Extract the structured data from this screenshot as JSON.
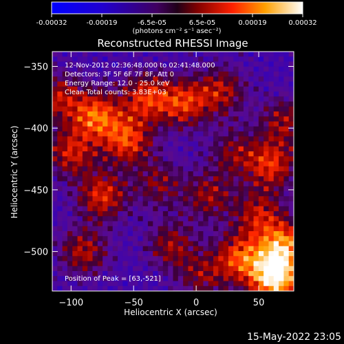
{
  "colorbar": {
    "ticks": [
      "-0.00032",
      "-0.00019",
      "-6.5e-05",
      "6.5e-05",
      "0.00019",
      "0.00032"
    ],
    "units": "(photons cm⁻² s⁻¹ asec⁻²)",
    "min": -0.00032,
    "max": 0.00032
  },
  "chart_data": {
    "type": "heatmap",
    "title": "Reconstructed RHESSI Image",
    "xlabel": "Heliocentric X (arcsec)",
    "ylabel": "Heliocentric Y (arcsec)",
    "xlim": [
      -115,
      78
    ],
    "ylim": [
      -532,
      -338
    ],
    "xticks": [
      -100,
      -50,
      0,
      50
    ],
    "yticks": [
      -500,
      -450,
      -400,
      -350
    ],
    "peak": [
      63,
      -521
    ],
    "info_lines": [
      "12-Nov-2012 02:36:48.000 to 02:41:48.000",
      "Detectors: 3F 5F 6F 7F 8F, Att 0",
      "Energy Range: 12.0 - 25.0 keV",
      "Clean     Total counts: 3.83E+03"
    ],
    "peak_label": "Position of Peak = [63,-521]",
    "sources": [
      {
        "x": 63,
        "y": -521,
        "amplitude": 1.0
      },
      {
        "x": 70,
        "y": -495,
        "amplitude": 0.7
      },
      {
        "x": 35,
        "y": -505,
        "amplitude": 0.6
      },
      {
        "x": -80,
        "y": -390,
        "amplitude": 0.65
      },
      {
        "x": -40,
        "y": -375,
        "amplitude": 0.55
      },
      {
        "x": -10,
        "y": -380,
        "amplitude": 0.55
      },
      {
        "x": 20,
        "y": -370,
        "amplitude": 0.45
      },
      {
        "x": -55,
        "y": -410,
        "amplitude": 0.6
      },
      {
        "x": -75,
        "y": -455,
        "amplitude": 0.55
      },
      {
        "x": -100,
        "y": -420,
        "amplitude": 0.5
      },
      {
        "x": -90,
        "y": -500,
        "amplitude": 0.45
      },
      {
        "x": -20,
        "y": -495,
        "amplitude": 0.4
      },
      {
        "x": 10,
        "y": -455,
        "amplitude": 0.4
      },
      {
        "x": 60,
        "y": -430,
        "amplitude": 0.55
      },
      {
        "x": 70,
        "y": -395,
        "amplitude": 0.4
      },
      {
        "x": 30,
        "y": -420,
        "amplitude": 0.35
      },
      {
        "x": -30,
        "y": -445,
        "amplitude": 0.35
      },
      {
        "x": 50,
        "y": -470,
        "amplitude": 0.45
      },
      {
        "x": -110,
        "y": -375,
        "amplitude": 0.45
      },
      {
        "x": 5,
        "y": -520,
        "amplitude": 0.35
      }
    ]
  },
  "footer": {
    "timestamp": "15-May-2022 23:05"
  }
}
